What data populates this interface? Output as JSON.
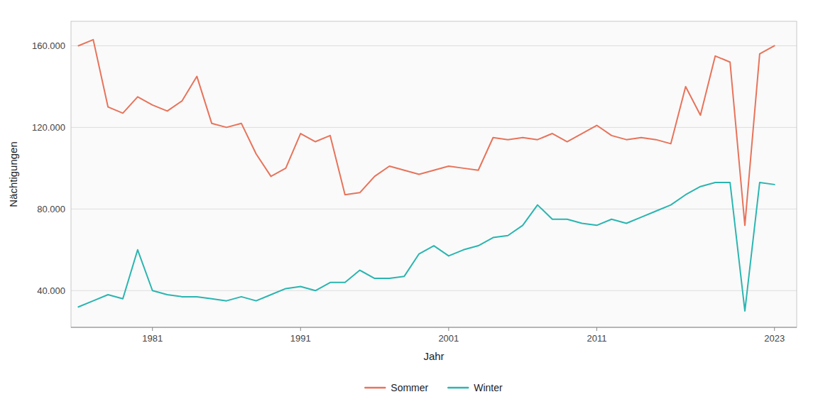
{
  "chart_data": {
    "type": "line",
    "x_label": "Jahr",
    "y_label": "Nächtigungen",
    "x": [
      1976,
      1977,
      1978,
      1979,
      1980,
      1981,
      1982,
      1983,
      1984,
      1985,
      1986,
      1987,
      1988,
      1989,
      1990,
      1991,
      1992,
      1993,
      1994,
      1995,
      1996,
      1997,
      1998,
      1999,
      2000,
      2001,
      2002,
      2003,
      2004,
      2005,
      2006,
      2007,
      2008,
      2009,
      2010,
      2011,
      2012,
      2013,
      2014,
      2015,
      2016,
      2017,
      2018,
      2019,
      2020,
      2021,
      2022,
      2023
    ],
    "series": [
      {
        "name": "Sommer",
        "color": "#E8735A",
        "values": [
          160000,
          163000,
          130000,
          127000,
          135000,
          131000,
          128000,
          133000,
          145000,
          122000,
          120000,
          122000,
          107000,
          96000,
          100000,
          117000,
          113000,
          116000,
          87000,
          88000,
          96000,
          101000,
          99000,
          97000,
          99000,
          101000,
          100000,
          99000,
          115000,
          114000,
          115000,
          114000,
          117000,
          113000,
          117000,
          121000,
          116000,
          114000,
          115000,
          114000,
          112000,
          140000,
          126000,
          155000,
          152000,
          72000,
          156000,
          160000
        ]
      },
      {
        "name": "Winter",
        "color": "#2AB5B0",
        "values": [
          32000,
          35000,
          38000,
          36000,
          60000,
          40000,
          38000,
          37000,
          37000,
          36000,
          35000,
          37000,
          35000,
          38000,
          41000,
          42000,
          40000,
          44000,
          44000,
          50000,
          46000,
          46000,
          47000,
          58000,
          62000,
          57000,
          60000,
          62000,
          66000,
          67000,
          72000,
          82000,
          75000,
          75000,
          73000,
          72000,
          75000,
          73000,
          76000,
          79000,
          82000,
          87000,
          91000,
          93000,
          93000,
          30000,
          93000,
          92000
        ]
      }
    ],
    "xlim": [
      1975.5,
      2024.5
    ],
    "xticks": [
      1981,
      1991,
      2001,
      2011,
      2023
    ],
    "ylim": [
      22000,
      172000
    ],
    "yticks": [
      {
        "value": 40000,
        "label": "40.000"
      },
      {
        "value": 80000,
        "label": "80.000"
      },
      {
        "value": 120000,
        "label": "120.000"
      },
      {
        "value": 160000,
        "label": "160.000"
      }
    ],
    "grid": true,
    "legend": "bottom"
  }
}
